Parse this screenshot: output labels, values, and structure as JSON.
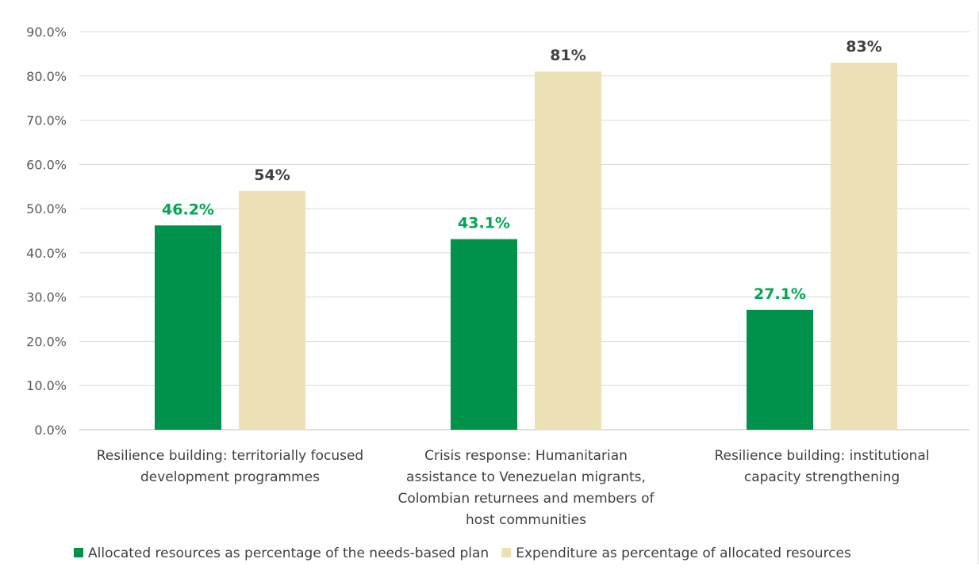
{
  "chart_data": {
    "type": "bar",
    "categories": [
      [
        "Resilience building: territorially focused",
        "development programmes"
      ],
      [
        "Crisis response: Humanitarian",
        "assistance to Venezuelan migrants,",
        "Colombian returnees and members of",
        "host communities"
      ],
      [
        "Resilience building: institutional",
        "capacity strengthening"
      ]
    ],
    "series": [
      {
        "name": "Allocated resources as percentage of the needs-based plan",
        "values": [
          46.2,
          43.1,
          27.1
        ],
        "labels": [
          "46.2%",
          "43.1%",
          "27.1%"
        ],
        "color": "#00914a",
        "label_color": "#00a651"
      },
      {
        "name": "Expenditure as percentage of allocated resources",
        "values": [
          54,
          81,
          83
        ],
        "labels": [
          "54%",
          "81%",
          "83%"
        ],
        "color": "#ebe1b4",
        "label_color": "#404040"
      }
    ],
    "y_ticks": [
      "0.0%",
      "10.0%",
      "20.0%",
      "30.0%",
      "40.0%",
      "50.0%",
      "60.0%",
      "70.0%",
      "80.0%",
      "90.0%"
    ],
    "ylim": [
      0,
      90
    ],
    "grid": true,
    "legend_position": "bottom",
    "title": "",
    "xlabel": "",
    "ylabel": ""
  }
}
